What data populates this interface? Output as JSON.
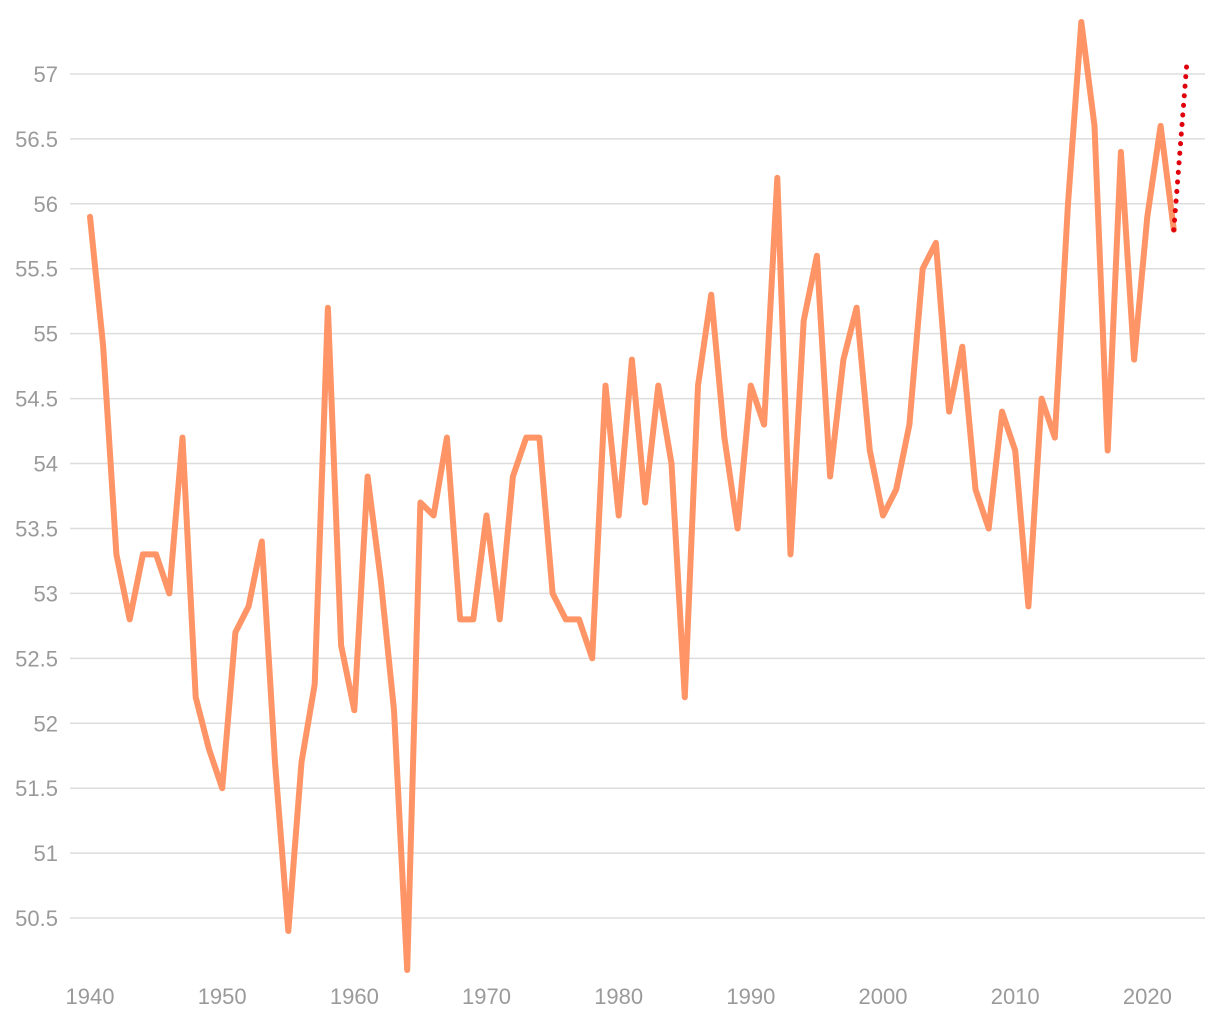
{
  "chart_data": {
    "type": "line",
    "title": "",
    "xlabel": "",
    "ylabel": "",
    "xlim": [
      1940,
      2023
    ],
    "ylim": [
      50.1,
      57.4
    ],
    "grid": true,
    "legend": "none",
    "x_ticks": [
      {
        "value": 1940,
        "label": "1940"
      },
      {
        "value": 1950,
        "label": "1950"
      },
      {
        "value": 1960,
        "label": "1960"
      },
      {
        "value": 1970,
        "label": "1970"
      },
      {
        "value": 1980,
        "label": "1980"
      },
      {
        "value": 1990,
        "label": "1990"
      },
      {
        "value": 2000,
        "label": "2000"
      },
      {
        "value": 2010,
        "label": "2010"
      },
      {
        "value": 2020,
        "label": "2020"
      }
    ],
    "y_ticks": [
      {
        "value": 50.5,
        "label": "50.5"
      },
      {
        "value": 51,
        "label": "51"
      },
      {
        "value": 51.5,
        "label": "51.5"
      },
      {
        "value": 52,
        "label": "52"
      },
      {
        "value": 52.5,
        "label": "52.5"
      },
      {
        "value": 53,
        "label": "53"
      },
      {
        "value": 53.5,
        "label": "53.5"
      },
      {
        "value": 54,
        "label": "54"
      },
      {
        "value": 54.5,
        "label": "54.5"
      },
      {
        "value": 55,
        "label": "55"
      },
      {
        "value": 55.5,
        "label": "55.5"
      },
      {
        "value": 56,
        "label": "56"
      },
      {
        "value": 56.5,
        "label": "56.5"
      },
      {
        "value": 57,
        "label": "57"
      }
    ],
    "series": [
      {
        "color": "#ff9466",
        "style": "solid",
        "x": [
          1940,
          1941,
          1942,
          1943,
          1944,
          1945,
          1946,
          1947,
          1948,
          1949,
          1950,
          1951,
          1952,
          1953,
          1954,
          1955,
          1956,
          1957,
          1958,
          1959,
          1960,
          1961,
          1962,
          1963,
          1964,
          1965,
          1966,
          1967,
          1968,
          1969,
          1970,
          1971,
          1972,
          1973,
          1974,
          1975,
          1976,
          1977,
          1978,
          1979,
          1980,
          1981,
          1982,
          1983,
          1984,
          1985,
          1986,
          1987,
          1988,
          1989,
          1990,
          1991,
          1992,
          1993,
          1994,
          1995,
          1996,
          1997,
          1998,
          1999,
          2000,
          2001,
          2002,
          2003,
          2004,
          2005,
          2006,
          2007,
          2008,
          2009,
          2010,
          2011,
          2012,
          2013,
          2014,
          2015,
          2016,
          2017,
          2018,
          2019,
          2020,
          2021,
          2022
        ],
        "y": [
          55.9,
          54.9,
          53.3,
          52.8,
          53.3,
          53.3,
          53.0,
          54.2,
          52.2,
          51.8,
          51.5,
          52.7,
          52.9,
          53.4,
          51.7,
          50.4,
          51.7,
          52.3,
          55.2,
          52.6,
          52.1,
          53.9,
          53.1,
          52.1,
          50.1,
          53.7,
          53.6,
          54.2,
          52.8,
          52.8,
          53.6,
          52.8,
          53.9,
          54.2,
          54.2,
          53.0,
          52.8,
          52.8,
          52.5,
          54.6,
          53.6,
          54.8,
          53.7,
          54.6,
          54.0,
          52.2,
          54.6,
          55.3,
          54.2,
          53.5,
          54.6,
          54.3,
          56.2,
          53.3,
          55.1,
          55.6,
          53.9,
          54.8,
          55.2,
          54.1,
          53.6,
          53.8,
          54.3,
          55.5,
          55.7,
          54.4,
          54.9,
          53.8,
          53.5,
          54.4,
          54.1,
          52.9,
          54.5,
          54.2,
          56.0,
          57.4,
          56.6,
          54.1,
          56.4,
          54.8,
          55.9,
          56.6,
          55.8
        ]
      },
      {
        "color": "#e0000b",
        "style": "dotted",
        "x": [
          2022,
          2023
        ],
        "y": [
          55.8,
          57.1
        ]
      }
    ]
  }
}
